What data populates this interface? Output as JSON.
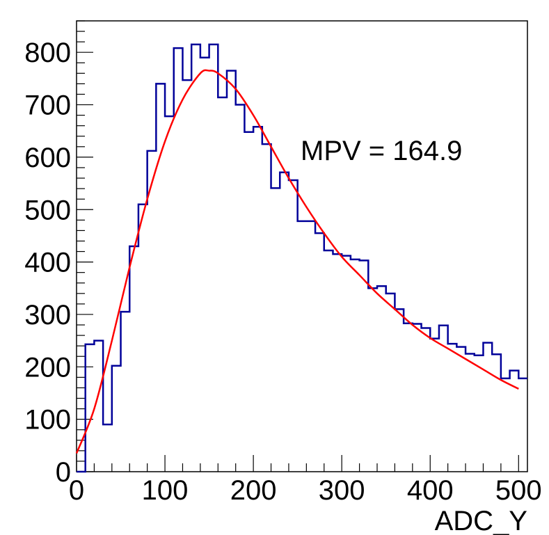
{
  "chart_data": {
    "type": "histogram",
    "xlabel": "ADC_Y",
    "ylabel": "",
    "xlim": [
      0,
      510
    ],
    "ylim": [
      0,
      860
    ],
    "x_ticks": [
      "0",
      "100",
      "200",
      "300",
      "400",
      "500"
    ],
    "y_ticks": [
      "0",
      "100",
      "200",
      "300",
      "400",
      "500",
      "600",
      "700",
      "800"
    ],
    "annotation": "MPV = 164.9",
    "bin_width": 10,
    "bins_start": 0,
    "series": [
      {
        "type": "step",
        "color": "#000099",
        "values": [
          0,
          243,
          250,
          90,
          202,
          305,
          430,
          510,
          612,
          740,
          678,
          808,
          747,
          815,
          790,
          815,
          714,
          765,
          700,
          648,
          658,
          625,
          541,
          571,
          556,
          478,
          478,
          455,
          422,
          415,
          412,
          405,
          403,
          350,
          354,
          340,
          310,
          283,
          282,
          274,
          254,
          279,
          244,
          238,
          225,
          222,
          246,
          224,
          178,
          193,
          178
        ]
      },
      {
        "type": "landau-fit",
        "color": "#ff0000",
        "x_range": [
          0,
          500
        ],
        "points": [
          [
            0,
            35
          ],
          [
            20,
            120
          ],
          [
            40,
            250
          ],
          [
            60,
            390
          ],
          [
            80,
            520
          ],
          [
            100,
            630
          ],
          [
            120,
            710
          ],
          [
            140,
            760
          ],
          [
            150,
            765
          ],
          [
            160,
            760
          ],
          [
            180,
            730
          ],
          [
            200,
            680
          ],
          [
            220,
            620
          ],
          [
            240,
            560
          ],
          [
            260,
            505
          ],
          [
            280,
            455
          ],
          [
            300,
            410
          ],
          [
            320,
            375
          ],
          [
            340,
            340
          ],
          [
            360,
            310
          ],
          [
            380,
            280
          ],
          [
            400,
            255
          ],
          [
            420,
            235
          ],
          [
            440,
            215
          ],
          [
            460,
            195
          ],
          [
            480,
            175
          ],
          [
            500,
            158
          ]
        ]
      }
    ]
  }
}
